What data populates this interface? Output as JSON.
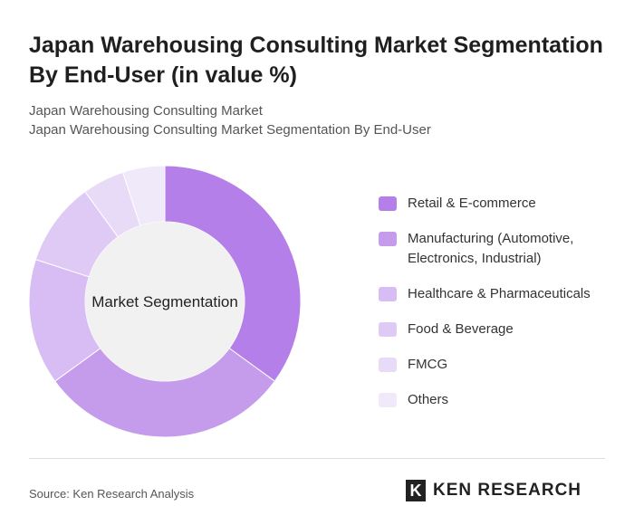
{
  "title": "Japan Warehousing Consulting Market Segmentation By End-User (in value %)",
  "subtitle1": "Japan Warehousing Consulting Market",
  "subtitle2": "Japan Warehousing Consulting Market Segmentation By End-User",
  "source": "Source: Ken Research Analysis",
  "logo": "KEN RESEARCH",
  "chart_data": {
    "type": "pie",
    "variant": "donut",
    "center_label": "Market Segmentation",
    "legend_position": "right",
    "categories": [
      "Retail & E-commerce",
      "Manufacturing (Automotive, Electronics, Industrial)",
      "Healthcare & Pharmaceuticals",
      "Food & Beverage",
      "FMCG",
      "Others"
    ],
    "values": [
      35,
      30,
      15,
      10,
      5,
      5
    ],
    "colors": [
      "#b47fe8",
      "#c59ceb",
      "#d7bdf3",
      "#dfc9f5",
      "#e8dbf8",
      "#f0e9fa"
    ]
  }
}
